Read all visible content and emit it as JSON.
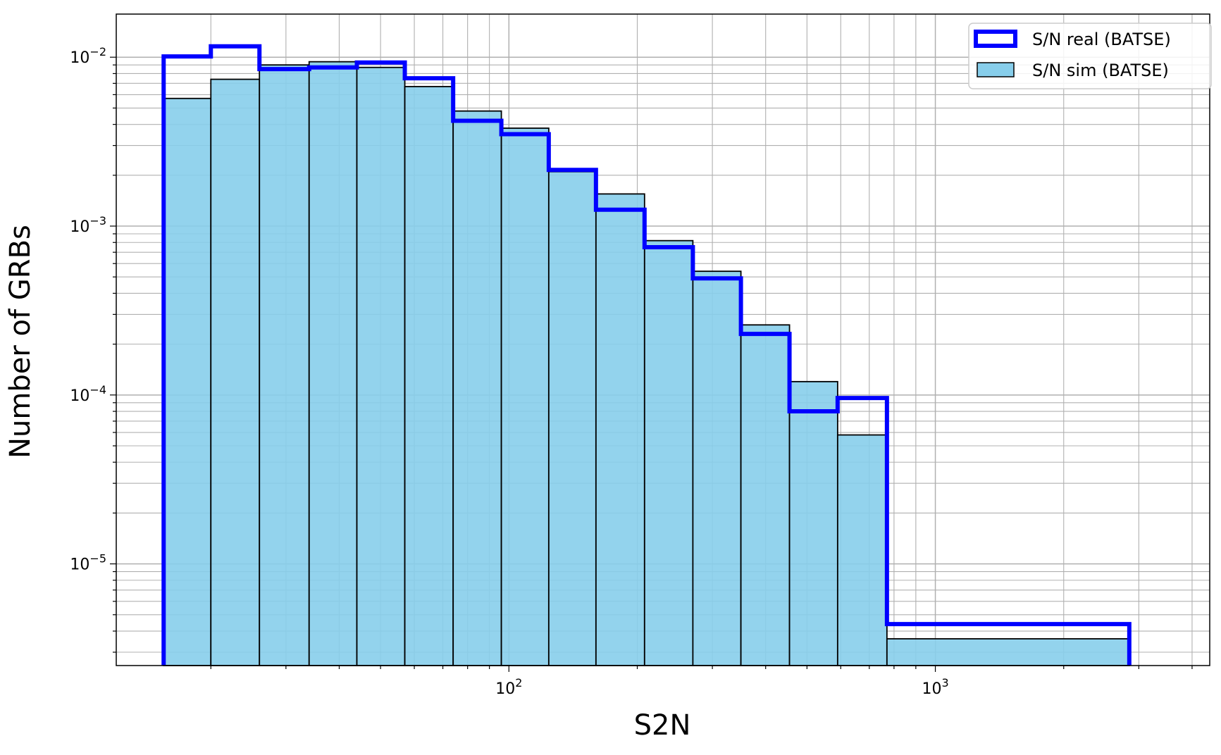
{
  "chart_data": {
    "type": "histogram",
    "xlabel": "S2N",
    "ylabel": "Number of GRBs",
    "xscale": "log",
    "yscale": "log",
    "xlim": [
      12,
      4400
    ],
    "ylim": [
      2.5e-06,
      0.018
    ],
    "grid": "major-and-minor",
    "legend_position": "top-right",
    "x_tick_labels": [
      {
        "value": 100,
        "mantissa": "10",
        "exponent": "2"
      },
      {
        "value": 1000,
        "mantissa": "10",
        "exponent": "3"
      }
    ],
    "y_tick_labels": [
      {
        "value": 1e-05,
        "mantissa": "10",
        "exponent": "−5"
      },
      {
        "value": 0.0001,
        "mantissa": "10",
        "exponent": "−4"
      },
      {
        "value": 0.001,
        "mantissa": "10",
        "exponent": "−3"
      },
      {
        "value": 0.01,
        "mantissa": "10",
        "exponent": "−2"
      }
    ],
    "bin_edges": [
      15.5,
      20.0,
      26.0,
      34.0,
      44.0,
      57.0,
      74.0,
      96.0,
      124.0,
      160.0,
      208.0,
      270.0,
      350.0,
      455.0,
      590.0,
      770.0,
      2850.0
    ],
    "series": [
      {
        "name": "S/N real (BATSE)",
        "style": "step",
        "color": "#0000ff",
        "values": [
          0.0101,
          0.0116,
          0.0085,
          0.0087,
          0.0093,
          0.0075,
          0.0042,
          0.0035,
          0.00215,
          0.00125,
          0.00075,
          0.00049,
          0.00023,
          8e-05,
          9.6e-05,
          4.4e-06
        ]
      },
      {
        "name": "S/N sim (BATSE)",
        "style": "bar",
        "color": "#87ceeb",
        "values": [
          0.0057,
          0.0074,
          0.009,
          0.0094,
          0.0087,
          0.0067,
          0.0048,
          0.0038,
          0.0021,
          0.00155,
          0.00082,
          0.00054,
          0.00026,
          0.00012,
          5.8e-05,
          3.6e-06
        ]
      }
    ]
  }
}
